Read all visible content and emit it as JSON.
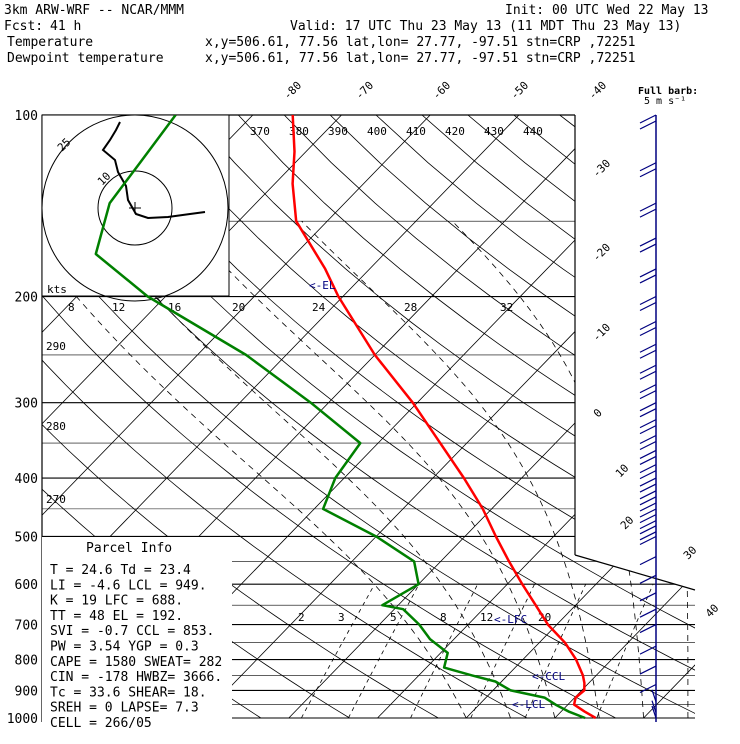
{
  "header": {
    "model": "3km ARW-WRF -- NCAR/MMM",
    "fcst_label": "Fcst:",
    "fcst_value": "41 h",
    "init": "Init: 00 UTC Wed 22 May 13",
    "valid": "Valid: 17 UTC Thu 23 May 13 (11 MDT Thu 23 May 13)"
  },
  "legend": [
    {
      "name": "Temperature",
      "color": "#ff0000",
      "info": "x,y=506.61, 77.56   lat,lon= 27.77, -97.51   stn=CRP ,72251"
    },
    {
      "name": "Dewpoint temperature",
      "color": "#008000",
      "info": "x,y=506.61, 77.56   lat,lon= 27.77, -97.51   stn=CRP ,72251"
    }
  ],
  "parcel_info": {
    "title": "Parcel Info",
    "rows": [
      "T   =    24.6  Td =  23.4",
      "LI  =    -4.6  LCL =  949.",
      "K   =      19  LFC =  688.",
      "TT  =      48  EL  =  192.",
      "SVI =    -0.7  CCL =  853.",
      "PW  =    3.54  YGP =   0.3",
      "CAPE =   1580  SWEAT=   282",
      "CIN =    -178  HWBZ= 3666.",
      "Tc  =    33.6  SHEAR=   18.",
      "SREH =      0  LAPSE=   7.3",
      "CELL = 266/05"
    ]
  },
  "wind_note": {
    "line1": "Full barb:",
    "line2": "5 m s⁻¹"
  },
  "hodograph": {
    "units": "kts",
    "ring_labels": [
      "10",
      "25"
    ]
  },
  "markers": {
    "el": "<-EL",
    "lfc": "<-LFC",
    "ccl": "<-CCL",
    "lcl": "<-LCL"
  },
  "axis_labels": {
    "pressure": [
      "100",
      "200",
      "300",
      "400",
      "500",
      "600",
      "700",
      "800",
      "900",
      "1000"
    ],
    "theta_top": [
      "370",
      "380",
      "390",
      "400",
      "410",
      "420",
      "430",
      "440"
    ],
    "theta_left": [
      "290",
      "280",
      "270"
    ],
    "mixing_ratio_200": [
      "8",
      "12",
      "16",
      "20",
      "24",
      "28",
      "32"
    ],
    "mixing_ratio_700": [
      "2",
      "3",
      "5",
      "8",
      "12",
      "20"
    ],
    "isotherms": [
      "-80",
      "-70",
      "-60",
      "-50",
      "-40",
      "-30",
      "-20",
      "-10",
      "0",
      "10",
      "20",
      "30",
      "40"
    ]
  },
  "chart_data": {
    "type": "line",
    "title": "",
    "xlabel": "",
    "ylabel": "",
    "x_units": "deg C (skewed isotherms)",
    "y_units": "hPa (log scale)",
    "ylim": [
      1000,
      100
    ],
    "series": [
      {
        "name": "Temperature",
        "color": "#ff0000",
        "points": [
          {
            "p": 1000,
            "t": 24.6
          },
          {
            "p": 975,
            "t": 22.6
          },
          {
            "p": 950,
            "t": 20.7
          },
          {
            "p": 925,
            "t": 20.1
          },
          {
            "p": 900,
            "t": 20.3
          },
          {
            "p": 875,
            "t": 19.5
          },
          {
            "p": 850,
            "t": 18.5
          },
          {
            "p": 800,
            "t": 16.0
          },
          {
            "p": 750,
            "t": 12.9
          },
          {
            "p": 700,
            "t": 9.0
          },
          {
            "p": 650,
            "t": 5.5
          },
          {
            "p": 600,
            "t": 1.7
          },
          {
            "p": 550,
            "t": -2.3
          },
          {
            "p": 500,
            "t": -6.5
          },
          {
            "p": 450,
            "t": -11.0
          },
          {
            "p": 400,
            "t": -16.5
          },
          {
            "p": 350,
            "t": -23.0
          },
          {
            "p": 300,
            "t": -30.5
          },
          {
            "p": 250,
            "t": -40.0
          },
          {
            "p": 200,
            "t": -50.5
          },
          {
            "p": 180,
            "t": -55.0
          },
          {
            "p": 150,
            "t": -63.5
          },
          {
            "p": 130,
            "t": -68.0
          },
          {
            "p": 115,
            "t": -71.3
          },
          {
            "p": 100,
            "t": -75.5
          }
        ]
      },
      {
        "name": "Dewpoint temperature",
        "color": "#008000",
        "points": [
          {
            "p": 1000,
            "t": 23.4
          },
          {
            "p": 975,
            "t": 20.8
          },
          {
            "p": 950,
            "t": 18.6
          },
          {
            "p": 925,
            "t": 16.6
          },
          {
            "p": 900,
            "t": 12.0
          },
          {
            "p": 870,
            "t": 9.3
          },
          {
            "p": 850,
            "t": 6.0
          },
          {
            "p": 825,
            "t": 2.0
          },
          {
            "p": 780,
            "t": 0.8
          },
          {
            "p": 740,
            "t": -2.7
          },
          {
            "p": 700,
            "t": -5.5
          },
          {
            "p": 660,
            "t": -9.0
          },
          {
            "p": 650,
            "t": -11.8
          },
          {
            "p": 600,
            "t": -10.0
          },
          {
            "p": 550,
            "t": -13.0
          },
          {
            "p": 500,
            "t": -20.0
          },
          {
            "p": 450,
            "t": -29.0
          },
          {
            "p": 400,
            "t": -31.0
          },
          {
            "p": 350,
            "t": -32.0
          },
          {
            "p": 300,
            "t": -42.0
          },
          {
            "p": 250,
            "t": -54.5
          },
          {
            "p": 200,
            "t": -72.0
          },
          {
            "p": 170,
            "t": -82.5
          },
          {
            "p": 140,
            "t": -86.5
          },
          {
            "p": 120,
            "t": -87.5
          },
          {
            "p": 100,
            "t": -88.7
          }
        ]
      }
    ],
    "wind_profile": {
      "units": "m s-1",
      "pressure_levels": [
        100,
        120,
        140,
        160,
        180,
        200,
        220,
        240,
        260,
        280,
        300,
        320,
        340,
        360,
        380,
        400,
        420,
        440,
        460,
        480,
        500,
        540,
        580,
        620,
        660,
        700,
        760,
        820,
        880,
        940,
        980,
        1000
      ]
    }
  }
}
